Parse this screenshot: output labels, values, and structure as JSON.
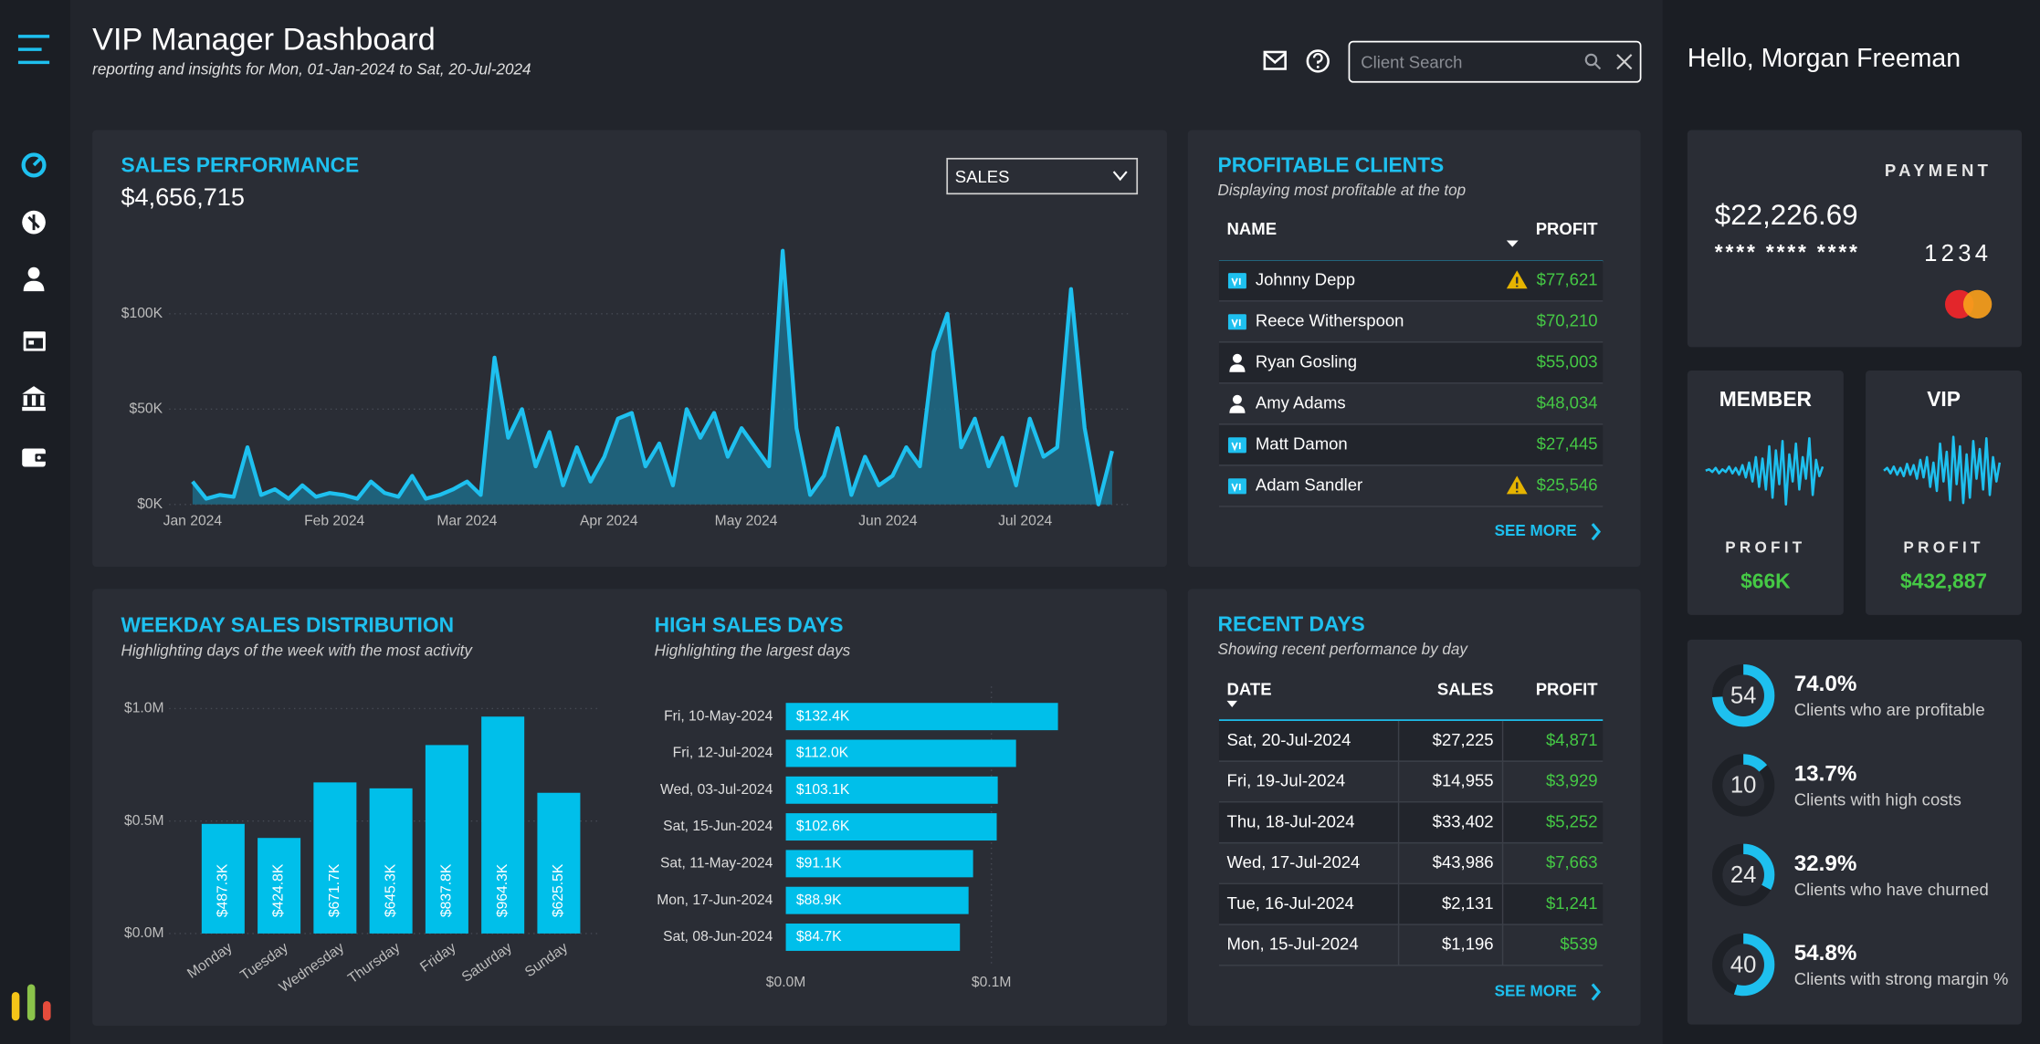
{
  "header": {
    "title": "VIP Manager Dashboard",
    "subtitle": "reporting and insights for Mon, 01-Jan-2024 to Sat, 20-Jul-2024",
    "search_placeholder": "Client Search",
    "greeting": "Hello, Morgan Freeman"
  },
  "chart_data": [
    {
      "type": "area_line",
      "title": "SALES PERFORMANCE",
      "total": "$4,656,715",
      "dropdown": "SALES",
      "color": "#1ec0ef",
      "x": [
        0,
        3,
        6,
        9,
        12,
        15,
        18,
        21,
        24,
        27,
        30,
        33,
        36,
        39,
        42,
        45,
        48,
        51,
        54,
        57,
        60,
        63,
        66,
        69,
        72,
        75,
        78,
        81,
        84,
        87,
        90,
        93,
        96,
        99,
        102,
        105,
        108,
        111,
        114,
        117,
        120,
        123,
        126,
        129,
        132,
        135,
        138,
        141,
        144,
        147,
        150,
        153,
        156,
        159,
        162,
        165,
        168,
        171,
        174,
        177,
        180,
        183,
        186,
        189,
        192,
        195,
        198,
        201
      ],
      "values": [
        12,
        3,
        5,
        4,
        30,
        5,
        8,
        3,
        10,
        4,
        6,
        5,
        3,
        12,
        6,
        4,
        15,
        3,
        5,
        8,
        12,
        5,
        77,
        35,
        50,
        20,
        38,
        10,
        30,
        12,
        25,
        45,
        48,
        20,
        32,
        10,
        50,
        35,
        48,
        25,
        40,
        30,
        20,
        133,
        40,
        5,
        15,
        40,
        5,
        25,
        10,
        15,
        30,
        20,
        80,
        100,
        30,
        45,
        20,
        35,
        10,
        45,
        25,
        30,
        113,
        40,
        0,
        28
      ],
      "xlim": [
        0,
        201
      ],
      "xticks": [
        {
          "value": 0,
          "label": "Jan 2024"
        },
        {
          "value": 31,
          "label": "Feb 2024"
        },
        {
          "value": 60,
          "label": "Mar 2024"
        },
        {
          "value": 91,
          "label": "Apr 2024"
        },
        {
          "value": 121,
          "label": "May 2024"
        },
        {
          "value": 152,
          "label": "Jun 2024"
        },
        {
          "value": 182,
          "label": "Jul 2024"
        }
      ],
      "ylim": [
        0,
        135
      ],
      "yticks": [
        {
          "value": 0,
          "label": "$0K"
        },
        {
          "value": 50,
          "label": "$50K"
        },
        {
          "value": 100,
          "label": "$100K"
        }
      ],
      "grid": true
    },
    {
      "type": "bar",
      "title": "WEEKDAY SALES DISTRIBUTION",
      "subtitle": "Highlighting days of the week with the most activity",
      "color": "#00bfea",
      "categories": [
        "Monday",
        "Tuesday",
        "Wednesday",
        "Thursday",
        "Friday",
        "Saturday",
        "Sunday"
      ],
      "values": [
        0.4873,
        0.4248,
        0.6717,
        0.6453,
        0.8378,
        0.9643,
        0.6255
      ],
      "value_labels": [
        "$487.3K",
        "$424.8K",
        "$671.7K",
        "$645.3K",
        "$837.8K",
        "$964.3K",
        "$625.5K"
      ],
      "ylim": [
        0,
        1.0
      ],
      "yticks": [
        {
          "value": 0,
          "label": "$0.0M"
        },
        {
          "value": 0.5,
          "label": "$0.5M"
        },
        {
          "value": 1.0,
          "label": "$1.0M"
        }
      ],
      "grid": true
    },
    {
      "type": "hbar",
      "title": "HIGH SALES DAYS",
      "subtitle": "Highlighting the largest days",
      "color": "#00bfea",
      "categories": [
        "Fri, 10-May-2024",
        "Fri, 12-Jul-2024",
        "Wed, 03-Jul-2024",
        "Sat, 15-Jun-2024",
        "Sat, 11-May-2024",
        "Mon, 17-Jun-2024",
        "Sat, 08-Jun-2024"
      ],
      "values": [
        0.1324,
        0.112,
        0.1031,
        0.1026,
        0.0911,
        0.0889,
        0.0847
      ],
      "value_labels": [
        "$132.4K",
        "$112.0K",
        "$103.1K",
        "$102.6K",
        "$91.1K",
        "$88.9K",
        "$84.7K"
      ],
      "xlim": [
        0,
        0.15
      ],
      "xticks": [
        {
          "value": 0,
          "label": "$0.0M"
        },
        {
          "value": 0.1,
          "label": "$0.1M"
        }
      ],
      "grid": true
    },
    {
      "type": "sparkline",
      "title": "MEMBER",
      "metric_label": "PROFIT",
      "metric": "$66K",
      "color": "#1ec0ef",
      "ylim": [
        -26,
        26
      ],
      "values": [
        0,
        1,
        -1,
        2,
        -2,
        1,
        -1,
        3,
        -2,
        2,
        -3,
        4,
        -5,
        6,
        -8,
        10,
        -12,
        9,
        -14,
        18,
        -20,
        15,
        -10,
        22,
        -25,
        12,
        -8,
        20,
        -14,
        10,
        -6,
        24,
        -18,
        8,
        -4,
        3
      ]
    },
    {
      "type": "sparkline",
      "title": "VIP",
      "metric_label": "PROFIT",
      "metric": "$432,887",
      "color": "#1ec0ef",
      "ylim": [
        -26,
        26
      ],
      "values": [
        0,
        2,
        -2,
        3,
        -3,
        2,
        -4,
        5,
        -3,
        4,
        -6,
        8,
        -5,
        10,
        -12,
        6,
        -15,
        20,
        -8,
        14,
        -22,
        25,
        -10,
        18,
        -24,
        12,
        -20,
        22,
        -6,
        16,
        -14,
        24,
        -18,
        10,
        -8,
        6
      ]
    }
  ],
  "profitable_clients": {
    "title": "PROFITABLE CLIENTS",
    "subtitle": "Displaying most profitable at the top",
    "columns": [
      "NAME",
      "PROFIT"
    ],
    "rows": [
      {
        "name": "Johnny Depp",
        "icon": "vip",
        "warning": true,
        "profit": "$77,621"
      },
      {
        "name": "Reece Witherspoon",
        "icon": "vip",
        "warning": false,
        "profit": "$70,210"
      },
      {
        "name": "Ryan Gosling",
        "icon": "person",
        "warning": false,
        "profit": "$55,003"
      },
      {
        "name": "Amy Adams",
        "icon": "person",
        "warning": false,
        "profit": "$48,034"
      },
      {
        "name": "Matt Damon",
        "icon": "vip",
        "warning": false,
        "profit": "$27,445"
      },
      {
        "name": "Adam Sandler",
        "icon": "vip",
        "warning": true,
        "profit": "$25,546"
      }
    ],
    "link": "SEE MORE"
  },
  "recent_days": {
    "title": "RECENT DAYS",
    "subtitle": "Showing recent performance by day",
    "columns": [
      "DATE",
      "SALES",
      "PROFIT"
    ],
    "rows": [
      [
        "Sat, 20-Jul-2024",
        "$27,225",
        "$4,871"
      ],
      [
        "Fri, 19-Jul-2024",
        "$14,955",
        "$3,929"
      ],
      [
        "Thu, 18-Jul-2024",
        "$33,402",
        "$5,252"
      ],
      [
        "Wed, 17-Jul-2024",
        "$43,986",
        "$7,663"
      ],
      [
        "Tue, 16-Jul-2024",
        "$2,131",
        "$1,241"
      ],
      [
        "Mon, 15-Jul-2024",
        "$1,196",
        "$539"
      ]
    ],
    "link": "SEE MORE"
  },
  "payment": {
    "title": "PAYMENT",
    "amount": "$22,226.69",
    "masked": "**** **** ****",
    "last4": "1234"
  },
  "kpis": [
    {
      "count": 54,
      "percent": 74.0,
      "percent_label": "74.0%",
      "label": "Clients who are profitable"
    },
    {
      "count": 10,
      "percent": 13.7,
      "percent_label": "13.7%",
      "label": "Clients with high costs"
    },
    {
      "count": 24,
      "percent": 32.9,
      "percent_label": "32.9%",
      "label": "Clients who have churned"
    },
    {
      "count": 40,
      "percent": 54.8,
      "percent_label": "54.8%",
      "label": "Clients with strong margin %"
    }
  ]
}
